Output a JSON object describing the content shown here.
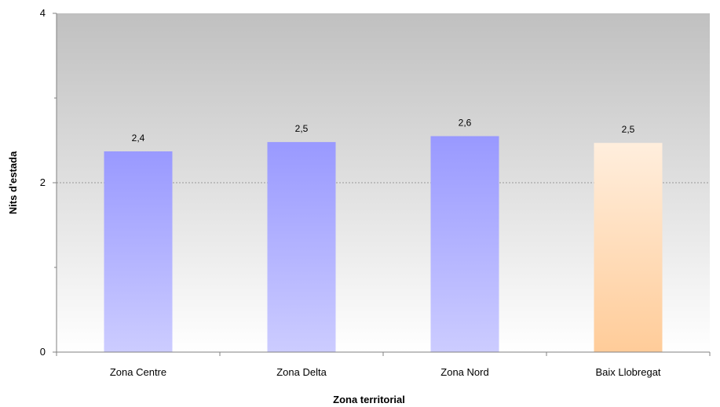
{
  "chart_data": {
    "type": "bar",
    "title": "",
    "xlabel": "Zona territorial",
    "ylabel": "Nits d'estada",
    "ylim": [
      0,
      4
    ],
    "yticks": [
      0,
      2,
      4
    ],
    "yticks_labels": [
      "0",
      "2",
      "4"
    ],
    "grid": true,
    "legend": "none",
    "categories": [
      "Zona Centre",
      "Zona Delta",
      "Zona Nord",
      "Baix Llobregat"
    ],
    "values": [
      2.37,
      2.48,
      2.55,
      2.47
    ],
    "data_labels": [
      "2,4",
      "2,5",
      "2,6",
      "2,5"
    ],
    "colors": {
      "bar_top": "#9999ff",
      "bar_bottom": "#ccccff",
      "highlight_top": "#ffeedd",
      "highlight_bottom": "#ffcc99",
      "plot_bg_top": "#c0c0c0",
      "plot_bg_bottom": "#ffffff",
      "gridline": "#999999",
      "axis": "#808080"
    },
    "highlight_index": 3
  }
}
